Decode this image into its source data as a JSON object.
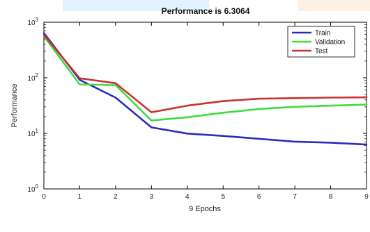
{
  "chart_data": {
    "type": "line",
    "title": "Performance is 6.3064",
    "xlabel": "9 Epochs",
    "ylabel": "Performance",
    "y_scale": "log",
    "xlim": [
      0,
      9
    ],
    "ylim": [
      1,
      1000
    ],
    "x_ticks": [
      "0",
      "1",
      "2",
      "3",
      "4",
      "5",
      "6",
      "7",
      "8",
      "9"
    ],
    "y_ticks": [
      {
        "base": "10",
        "exp": "0"
      },
      {
        "base": "10",
        "exp": "1"
      },
      {
        "base": "10",
        "exp": "2"
      },
      {
        "base": "10",
        "exp": "3"
      }
    ],
    "legend_position": "top-right",
    "x": [
      0,
      1,
      2,
      3,
      4,
      5,
      6,
      7,
      8,
      9
    ],
    "series": [
      {
        "name": "Train",
        "color": "#2b2bbf",
        "values": [
          640,
          92,
          44,
          12.8,
          9.9,
          9.0,
          8.0,
          7.1,
          6.8,
          6.3
        ]
      },
      {
        "name": "Validation",
        "color": "#3fdb3f",
        "values": [
          560,
          76,
          74,
          17.0,
          19.5,
          23.5,
          27.5,
          30.0,
          31.5,
          33.0
        ]
      },
      {
        "name": "Test",
        "color": "#c83232",
        "values": [
          590,
          98,
          80,
          24.0,
          31.5,
          38.0,
          42.0,
          43.0,
          44.0,
          44.5
        ]
      }
    ]
  }
}
